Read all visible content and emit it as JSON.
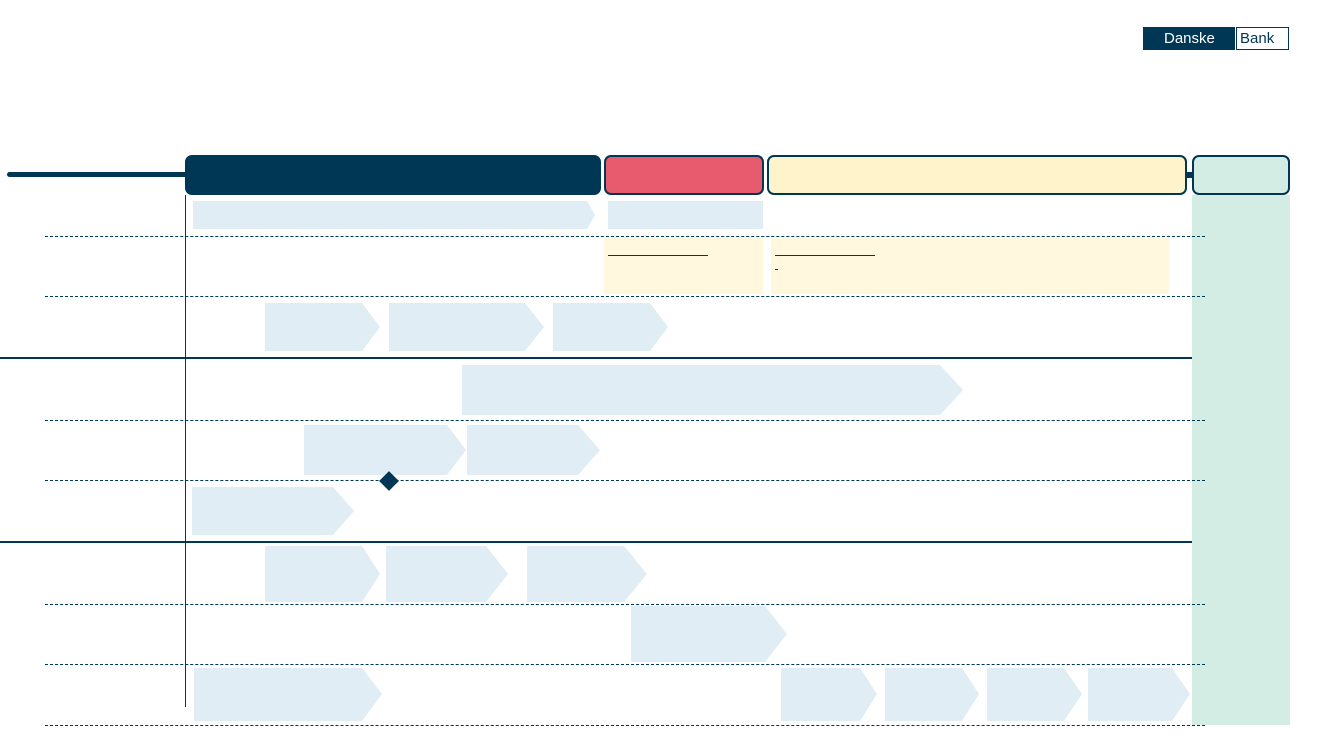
{
  "logo": {
    "part1": "Danske",
    "part2": "Bank"
  },
  "colors": {
    "navy": "#003755",
    "red": "#e85a6e",
    "yellow": "#fff3cc",
    "mint": "#d4ede4",
    "chevron": "#e0edf4"
  },
  "shapes": {
    "milestone": "diamond"
  }
}
